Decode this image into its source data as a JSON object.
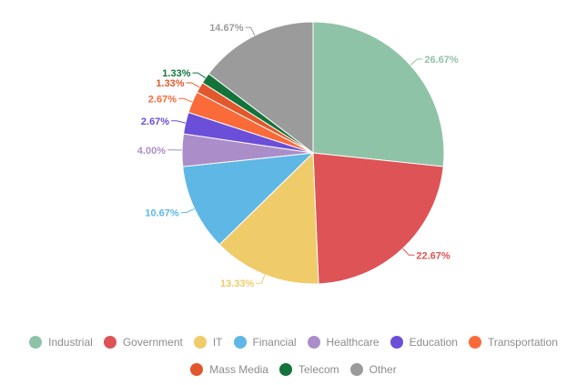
{
  "chart_data": {
    "type": "pie",
    "categories": [
      "Industrial",
      "Government",
      "IT",
      "Financial",
      "Healthcare",
      "Education",
      "Transportation",
      "Mass Media",
      "Telecom",
      "Other"
    ],
    "values": [
      26.67,
      22.67,
      13.33,
      10.67,
      4.0,
      2.67,
      2.67,
      1.33,
      1.33,
      14.67
    ],
    "labels": [
      "26.67%",
      "22.67%",
      "13.33%",
      "10.67%",
      "4.00%",
      "2.67%",
      "2.67%",
      "1.33%",
      "1.33%",
      "14.67%"
    ],
    "colors": [
      "#8fc3a7",
      "#dd5356",
      "#f0cb69",
      "#5fb7e5",
      "#ab8ec9",
      "#6b4fd9",
      "#fb6a39",
      "#e2572b",
      "#14733b",
      "#9b9b9b"
    ],
    "legend_position": "bottom"
  }
}
